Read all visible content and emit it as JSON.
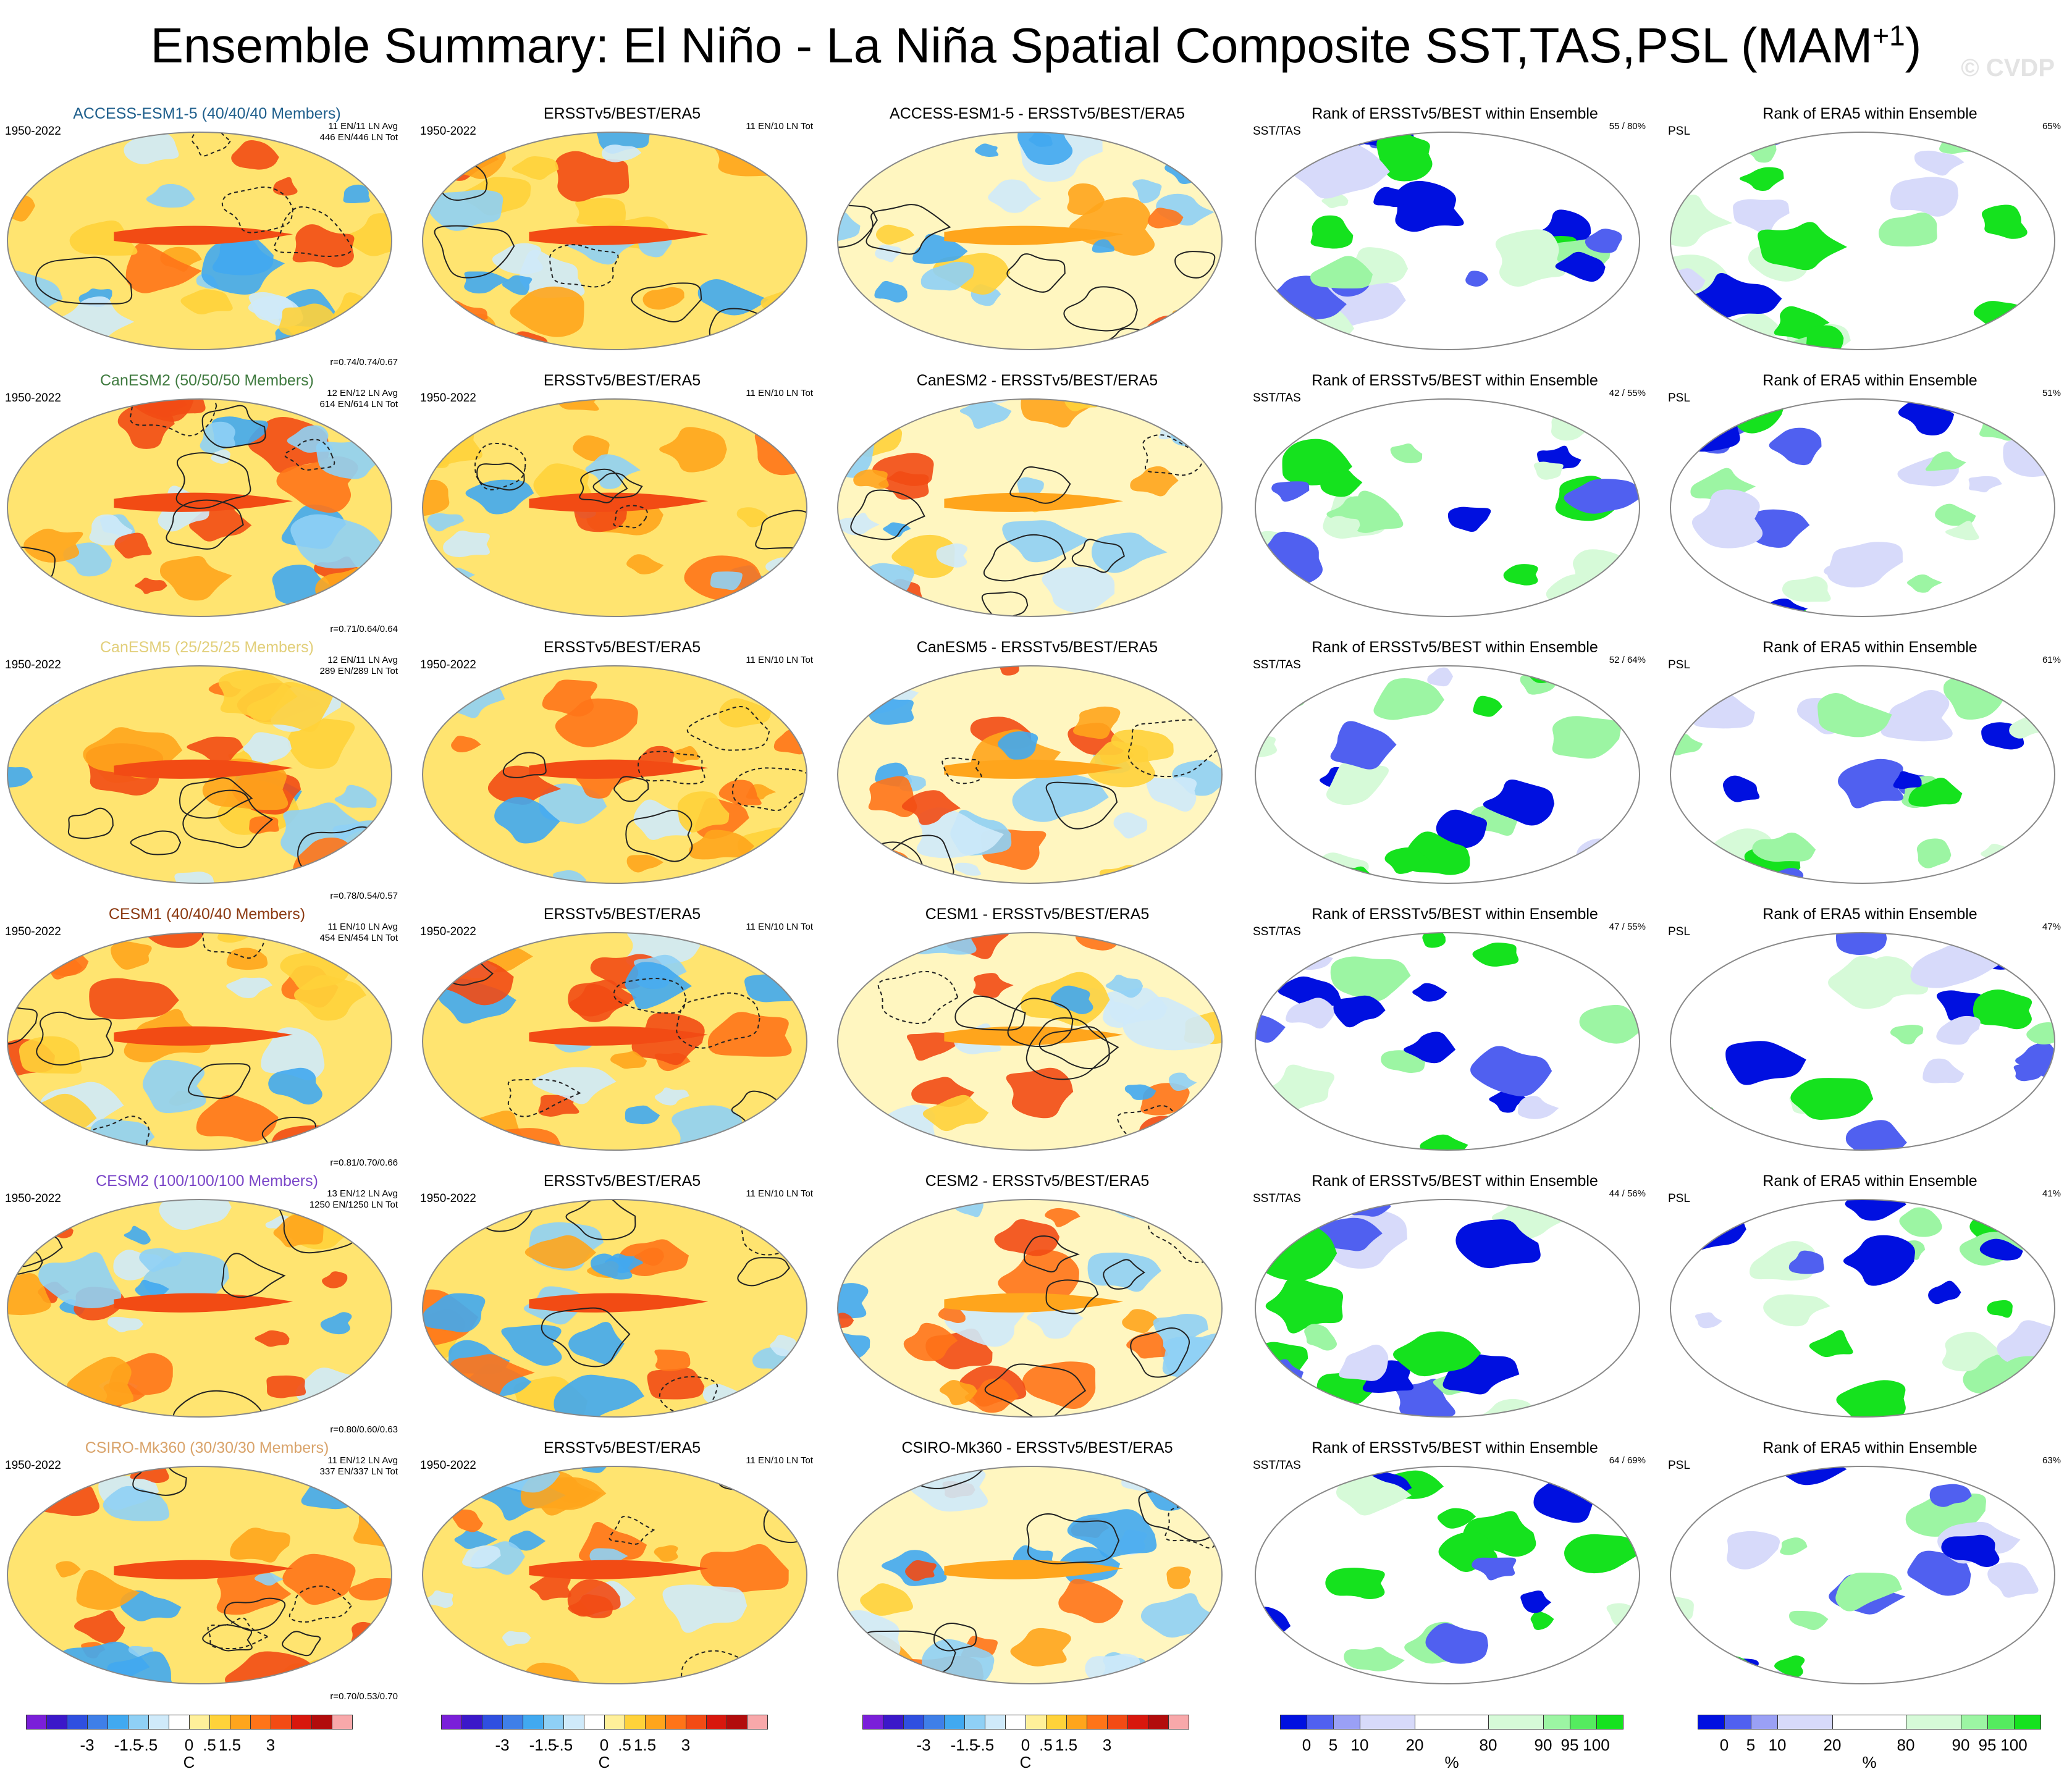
{
  "title": {
    "main": "Ensemble Summary: El Niño - La Niña Spatial Composite SST,TAS,PSL (MAM",
    "sup": "+1",
    "tail": ")"
  },
  "watermark": "© CVDP",
  "colors": {
    "temp_scale": [
      "#7a1fd9",
      "#3b18c9",
      "#2f4fe0",
      "#3f7fe8",
      "#41a9f0",
      "#8fd0f5",
      "#cfeafa",
      "#ffffff",
      "#fff09a",
      "#ffd23a",
      "#ffa51c",
      "#ff7418",
      "#f24b14",
      "#d8170d",
      "#b20c0c",
      "#f8a8aa"
    ],
    "rank_scale": [
      "#0010e0",
      "#5060f0",
      "#9aa0f5",
      "#d7dafa",
      "#ffffff",
      "#d6fad8",
      "#9cf5a3",
      "#55eb5f",
      "#15e21e"
    ],
    "model_title_colors": [
      "#1f5f8c",
      "#3f7a3f",
      "#e2cf7a",
      "#8c3a12",
      "#7a46c8",
      "#d9a36a"
    ]
  },
  "rows": [
    {
      "model": "ACCESS-ESM1-5 (40/40/40 Members)",
      "period": "1950-2022",
      "avg": "11 EN/11 LN Avg",
      "tot": "446 EN/446 LN Tot",
      "corr": "r=0.74/0.74/0.67",
      "obs_title": "ERSSTv5/BEST/ERA5",
      "obs_period": "1950-2022",
      "obs_tot": "11 EN/10 LN Tot",
      "diff_title": "ACCESS-ESM1-5 - ERSSTv5/BEST/ERA5",
      "rank1_title": "Rank of ERSSTv5/BEST within Ensemble",
      "rank1_var": "SST/TAS",
      "rank1_pct": "55 /  80%",
      "rank2_title": "Rank of ERA5 within Ensemble",
      "rank2_var": "PSL",
      "rank2_pct": "65%"
    },
    {
      "model": "CanESM2 (50/50/50 Members)",
      "period": "1950-2022",
      "avg": "12 EN/12 LN Avg",
      "tot": "614 EN/614 LN Tot",
      "corr": "r=0.71/0.64/0.64",
      "obs_title": "ERSSTv5/BEST/ERA5",
      "obs_period": "1950-2022",
      "obs_tot": "11 EN/10 LN Tot",
      "diff_title": "CanESM2 - ERSSTv5/BEST/ERA5",
      "rank1_title": "Rank of ERSSTv5/BEST within Ensemble",
      "rank1_var": "SST/TAS",
      "rank1_pct": "42 /  55%",
      "rank2_title": "Rank of ERA5 within Ensemble",
      "rank2_var": "PSL",
      "rank2_pct": "51%"
    },
    {
      "model": "CanESM5 (25/25/25 Members)",
      "period": "1950-2022",
      "avg": "12 EN/11 LN Avg",
      "tot": "289 EN/289 LN Tot",
      "corr": "r=0.78/0.54/0.57",
      "obs_title": "ERSSTv5/BEST/ERA5",
      "obs_period": "1950-2022",
      "obs_tot": "11 EN/10 LN Tot",
      "diff_title": "CanESM5 - ERSSTv5/BEST/ERA5",
      "rank1_title": "Rank of ERSSTv5/BEST within Ensemble",
      "rank1_var": "SST/TAS",
      "rank1_pct": "52 /  64%",
      "rank2_title": "Rank of ERA5 within Ensemble",
      "rank2_var": "PSL",
      "rank2_pct": "61%"
    },
    {
      "model": "CESM1 (40/40/40 Members)",
      "period": "1950-2022",
      "avg": "11 EN/10 LN Avg",
      "tot": "454 EN/454 LN Tot",
      "corr": "r=0.81/0.70/0.66",
      "obs_title": "ERSSTv5/BEST/ERA5",
      "obs_period": "1950-2022",
      "obs_tot": "11 EN/10 LN Tot",
      "diff_title": "CESM1 - ERSSTv5/BEST/ERA5",
      "rank1_title": "Rank of ERSSTv5/BEST within Ensemble",
      "rank1_var": "SST/TAS",
      "rank1_pct": "47 /  55%",
      "rank2_title": "Rank of ERA5 within Ensemble",
      "rank2_var": "PSL",
      "rank2_pct": "47%"
    },
    {
      "model": "CESM2 (100/100/100 Members)",
      "period": "1950-2022",
      "avg": "13 EN/12 LN Avg",
      "tot": "1250 EN/1250 LN Tot",
      "corr": "r=0.80/0.60/0.63",
      "obs_title": "ERSSTv5/BEST/ERA5",
      "obs_period": "1950-2022",
      "obs_tot": "11 EN/10 LN Tot",
      "diff_title": "CESM2 - ERSSTv5/BEST/ERA5",
      "rank1_title": "Rank of ERSSTv5/BEST within Ensemble",
      "rank1_var": "SST/TAS",
      "rank1_pct": "44 /  56%",
      "rank2_title": "Rank of ERA5 within Ensemble",
      "rank2_var": "PSL",
      "rank2_pct": "41%"
    },
    {
      "model": "CSIRO-Mk360 (30/30/30 Members)",
      "period": "1950-2022",
      "avg": "11 EN/12 LN Avg",
      "tot": "337 EN/337 LN Tot",
      "corr": "r=0.70/0.53/0.70",
      "obs_title": "ERSSTv5/BEST/ERA5",
      "obs_period": "1950-2022",
      "obs_tot": "11 EN/10 LN Tot",
      "diff_title": "CSIRO-Mk360 - ERSSTv5/BEST/ERA5",
      "rank1_title": "Rank of ERSSTv5/BEST within Ensemble",
      "rank1_var": "SST/TAS",
      "rank1_pct": "64 /  69%",
      "rank2_title": "Rank of ERA5 within Ensemble",
      "rank2_var": "PSL",
      "rank2_pct": "63%"
    }
  ],
  "legends": {
    "temp": {
      "ticks": [
        "-3",
        "-1.5",
        "-.5",
        "0",
        ".5",
        "1.5",
        "3"
      ],
      "unit": "C"
    },
    "rank": {
      "ticks": [
        "0",
        "5",
        "10",
        "20",
        "80",
        "90",
        "95",
        "100"
      ],
      "unit": "%"
    }
  }
}
